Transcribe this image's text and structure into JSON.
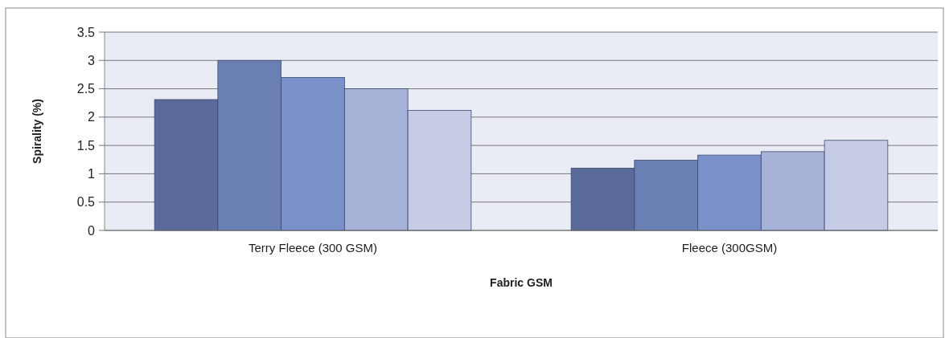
{
  "chart_data": {
    "type": "bar",
    "xlabel": "Fabric GSM",
    "ylabel": "Spirality (%)",
    "categories": [
      "Terry Fleece (300 GSM)",
      "Fleece (300GSM)"
    ],
    "series": [
      {
        "color": "#5a6a9a",
        "values": [
          2.31,
          1.1
        ]
      },
      {
        "color": "#6a7fb4",
        "values": [
          3.0,
          1.24
        ]
      },
      {
        "color": "#7a90c8",
        "values": [
          2.7,
          1.33
        ]
      },
      {
        "color": "#a6b2d8",
        "values": [
          2.5,
          1.39
        ]
      },
      {
        "color": "#c6cce6",
        "values": [
          2.12,
          1.59
        ]
      }
    ],
    "ylim": [
      0,
      3.5
    ],
    "yticks": [
      0,
      0.5,
      1,
      1.5,
      2,
      2.5,
      3,
      3.5
    ],
    "grid": "y"
  }
}
